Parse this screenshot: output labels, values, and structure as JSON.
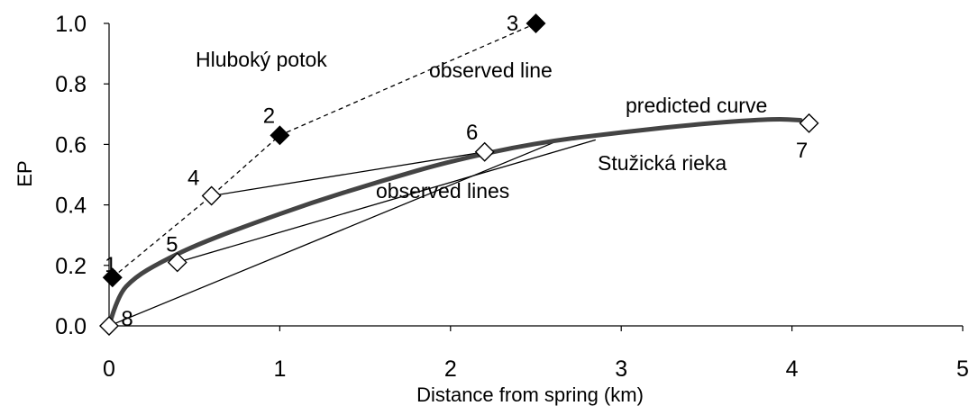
{
  "chart_data": {
    "type": "scatter",
    "xlabel": "Distance from spring (km)",
    "ylabel": "EP",
    "xlim": [
      0,
      5
    ],
    "ylim": [
      0,
      1.0
    ],
    "xticks": [
      "0",
      "1",
      "2",
      "3",
      "4",
      "5"
    ],
    "yticks": [
      "0.0",
      "0.2",
      "0.4",
      "0.6",
      "0.8",
      "1.0"
    ],
    "grid": false,
    "series": [
      {
        "name": "Hluboký potok",
        "marker": "filled-diamond",
        "line": "dashed",
        "points": [
          {
            "label": "1",
            "x": 0.02,
            "y": 0.16
          },
          {
            "label": "2",
            "x": 1.0,
            "y": 0.63
          },
          {
            "label": "3",
            "x": 2.5,
            "y": 1.0
          }
        ]
      },
      {
        "name": "Stužická rieka",
        "marker": "open-diamond",
        "points": [
          {
            "label": "4",
            "x": 0.6,
            "y": 0.43
          },
          {
            "label": "5",
            "x": 0.4,
            "y": 0.21
          },
          {
            "label": "6",
            "x": 2.2,
            "y": 0.575
          },
          {
            "label": "7",
            "x": 4.1,
            "y": 0.67
          },
          {
            "label": "8",
            "x": 0.0,
            "y": 0.0
          }
        ]
      }
    ],
    "dashed_path": [
      {
        "x": 0.02,
        "y": 0.16
      },
      {
        "x": 0.6,
        "y": 0.43
      },
      {
        "x": 1.0,
        "y": 0.63
      },
      {
        "x": 2.5,
        "y": 1.0
      }
    ],
    "observed_lines": [
      [
        {
          "x": 0.6,
          "y": 0.43
        },
        {
          "x": 2.2,
          "y": 0.575
        }
      ],
      [
        {
          "x": 0.4,
          "y": 0.21
        },
        {
          "x": 2.85,
          "y": 0.615
        }
      ],
      [
        {
          "x": 0.0,
          "y": 0.0
        },
        {
          "x": 2.6,
          "y": 0.605
        }
      ]
    ],
    "predicted_curve": [
      {
        "x": 0.0,
        "y": 0.0
      },
      {
        "x": 0.05,
        "y": 0.1
      },
      {
        "x": 0.15,
        "y": 0.16
      },
      {
        "x": 0.3,
        "y": 0.21
      },
      {
        "x": 0.5,
        "y": 0.265
      },
      {
        "x": 0.8,
        "y": 0.33
      },
      {
        "x": 1.2,
        "y": 0.41
      },
      {
        "x": 1.6,
        "y": 0.48
      },
      {
        "x": 2.0,
        "y": 0.545
      },
      {
        "x": 2.5,
        "y": 0.605
      },
      {
        "x": 3.0,
        "y": 0.64
      },
      {
        "x": 3.5,
        "y": 0.67
      },
      {
        "x": 3.9,
        "y": 0.685
      },
      {
        "x": 4.05,
        "y": 0.68
      }
    ],
    "annotations": {
      "hluboky": "Hluboký potok",
      "observed_line": "observed line",
      "predicted_curve": "predicted curve",
      "stuzicka": "Stužická rieka",
      "observed_lines": "observed lines"
    }
  }
}
